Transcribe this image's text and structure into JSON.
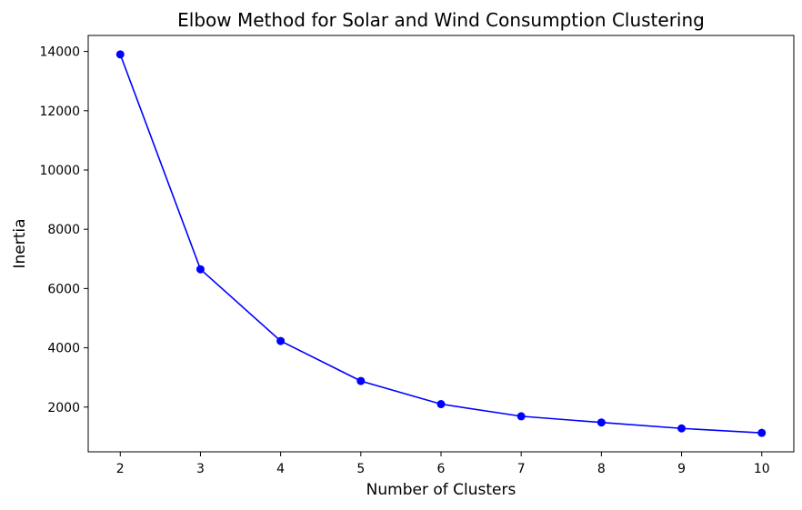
{
  "chart_data": {
    "type": "line",
    "title": "Elbow Method for Solar and Wind Consumption Clustering",
    "xlabel": "Number of Clusters",
    "ylabel": "Inertia",
    "x": [
      2,
      3,
      4,
      5,
      6,
      7,
      8,
      9,
      10
    ],
    "y": [
      13900,
      6650,
      4230,
      2880,
      2100,
      1690,
      1480,
      1280,
      1130
    ],
    "xlim": [
      1.6,
      10.4
    ],
    "ylim": [
      490,
      14540
    ],
    "xticks": [
      2,
      3,
      4,
      5,
      6,
      7,
      8,
      9,
      10
    ],
    "yticks": [
      2000,
      4000,
      6000,
      8000,
      10000,
      12000,
      14000
    ],
    "xtick_labels": [
      "2",
      "3",
      "4",
      "5",
      "6",
      "7",
      "8",
      "9",
      "10"
    ],
    "ytick_labels": [
      "2000",
      "4000",
      "6000",
      "8000",
      "10000",
      "12000",
      "14000"
    ],
    "grid": false,
    "legend": false,
    "marker": "circle",
    "color": "#0000ff"
  }
}
